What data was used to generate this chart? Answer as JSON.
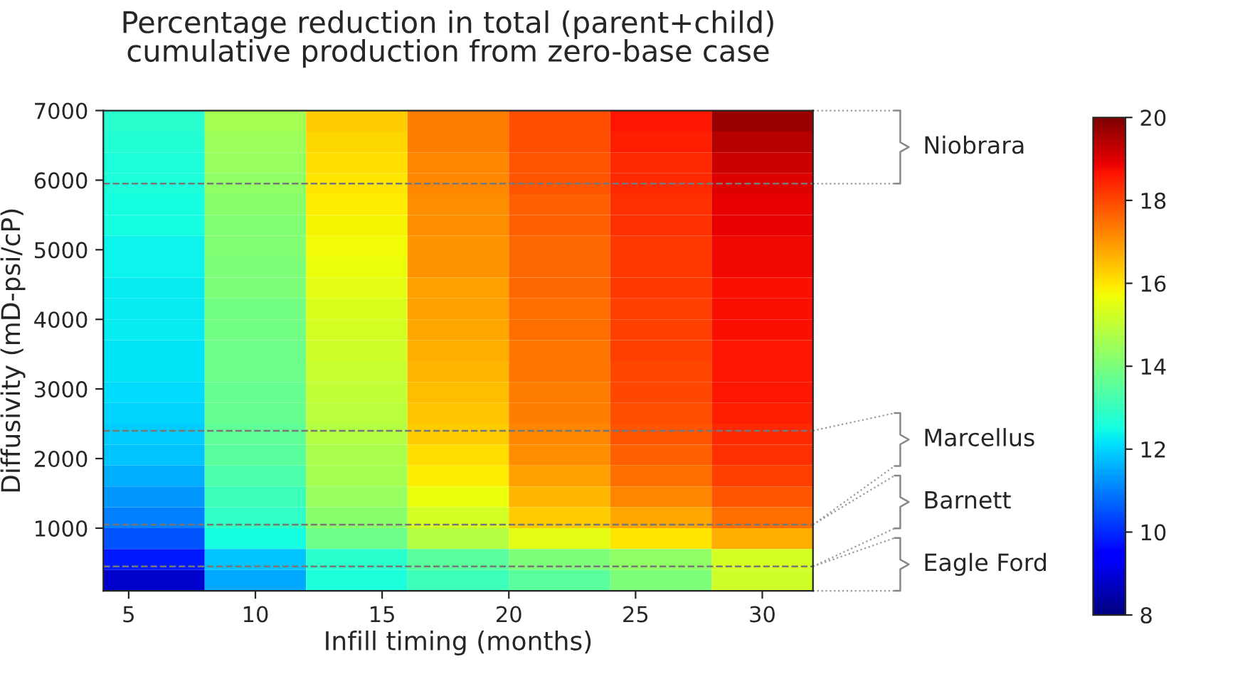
{
  "chart_data": {
    "type": "heatmap",
    "title": "Percentage reduction in total (parent+child)\ncumulative production from zero-base case",
    "xlabel": "Infill timing (months)",
    "ylabel": "Diffusivity (mD-psi/cP)",
    "x": [
      6,
      10,
      14,
      18,
      22,
      26,
      30
    ],
    "xlim": [
      4,
      32
    ],
    "ylim": [
      100,
      7000
    ],
    "xticks": [
      5,
      10,
      15,
      20,
      25,
      30
    ],
    "yticks": [
      1000,
      2000,
      3000,
      4000,
      5000,
      6000,
      7000
    ],
    "clim": [
      8,
      20
    ],
    "cticks": [
      8,
      10,
      12,
      14,
      16,
      18,
      20
    ],
    "cells": [
      [
        12.8,
        14.6,
        16.3,
        17.3,
        17.9,
        18.6,
        19.7
      ],
      [
        12.7,
        14.5,
        16.2,
        17.3,
        17.9,
        18.5,
        19.4
      ],
      [
        12.6,
        14.4,
        16.1,
        17.2,
        17.8,
        18.4,
        19.2
      ],
      [
        12.6,
        14.3,
        16.0,
        17.2,
        17.8,
        18.4,
        19.0
      ],
      [
        12.5,
        14.2,
        15.9,
        17.1,
        17.7,
        18.3,
        18.9
      ],
      [
        12.5,
        14.1,
        15.8,
        17.1,
        17.7,
        18.3,
        18.9
      ],
      [
        12.4,
        14.1,
        15.7,
        17.0,
        17.6,
        18.2,
        18.8
      ],
      [
        12.4,
        14.0,
        15.6,
        17.0,
        17.6,
        18.2,
        18.8
      ],
      [
        12.3,
        14.0,
        15.5,
        16.9,
        17.6,
        18.2,
        18.7
      ],
      [
        12.3,
        13.9,
        15.4,
        16.9,
        17.5,
        18.1,
        18.7
      ],
      [
        12.3,
        13.9,
        15.3,
        16.8,
        17.5,
        18.1,
        18.7
      ],
      [
        12.2,
        13.8,
        15.2,
        16.7,
        17.4,
        18.1,
        18.6
      ],
      [
        12.2,
        13.8,
        15.1,
        16.6,
        17.4,
        18.0,
        18.6
      ],
      [
        12.1,
        13.7,
        15.0,
        16.5,
        17.3,
        18.0,
        18.6
      ],
      [
        12.0,
        13.7,
        14.9,
        16.4,
        17.3,
        17.9,
        18.5
      ],
      [
        11.9,
        13.6,
        14.8,
        16.3,
        17.2,
        17.8,
        18.4
      ],
      [
        11.8,
        13.5,
        14.7,
        16.1,
        17.1,
        17.7,
        18.3
      ],
      [
        11.6,
        13.3,
        14.6,
        15.9,
        16.9,
        17.5,
        18.1
      ],
      [
        11.3,
        13.1,
        14.4,
        15.6,
        16.6,
        17.2,
        17.8
      ],
      [
        11.0,
        12.9,
        14.2,
        15.3,
        16.3,
        16.8,
        17.5
      ],
      [
        10.5,
        12.5,
        13.8,
        14.8,
        15.5,
        16.0,
        16.7
      ],
      [
        9.8,
        11.8,
        12.8,
        13.5,
        14.0,
        14.3,
        15.3
      ],
      [
        8.8,
        11.5,
        12.6,
        13.1,
        13.5,
        14.0,
        15.2
      ]
    ],
    "ref_lines": [
      {
        "axis": "y",
        "value": 5950,
        "color": "#777777",
        "line_style": "dashed"
      },
      {
        "axis": "y",
        "value": 2400,
        "color": "#777777",
        "line_style": "dashed"
      },
      {
        "axis": "y",
        "value": 1050,
        "color": "#777777",
        "line_style": "dashed"
      },
      {
        "axis": "y",
        "value": 450,
        "color": "#777777",
        "line_style": "dashed"
      }
    ],
    "annotations": [
      "Niobrara",
      "Marcellus",
      "Barnett",
      "Eagle Ford"
    ]
  }
}
